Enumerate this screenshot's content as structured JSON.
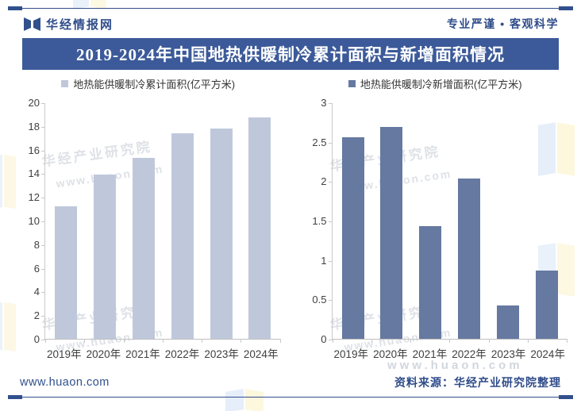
{
  "header": {
    "brand": "华经情报网",
    "tagline": "专业严谨 • 客观科学"
  },
  "title": "2019-2024年中国地热供暖制冷累计面积与新增面积情况",
  "chart_data": [
    {
      "type": "bar",
      "legend": "地热能供暖制冷累计面积(亿平方米)",
      "categories": [
        "2019年",
        "2020年",
        "2021年",
        "2022年",
        "2023年",
        "2024年"
      ],
      "values": [
        11.2,
        13.9,
        15.3,
        17.4,
        17.8,
        18.7
      ],
      "ylim": [
        0,
        20
      ],
      "yticks": [
        0,
        2,
        4,
        6,
        8,
        10,
        12,
        14,
        16,
        18,
        20
      ],
      "bar_color": "#BFC8DB",
      "legend_position": "top",
      "grid": false
    },
    {
      "type": "bar",
      "legend": "地热能供暖制冷新增面积(亿平方米)",
      "categories": [
        "2019年",
        "2020年",
        "2021年",
        "2022年",
        "2023年",
        "2024年"
      ],
      "values": [
        2.56,
        2.69,
        1.43,
        2.03,
        0.42,
        0.87
      ],
      "ylim": [
        0,
        3
      ],
      "yticks": [
        0,
        0.5,
        1,
        1.5,
        2,
        2.5,
        3
      ],
      "bar_color": "#6579A1",
      "legend_position": "top",
      "grid": false
    }
  ],
  "footer": {
    "website": "www.huaon.com",
    "source": "资料来源：华经产业研究院整理"
  },
  "watermark": {
    "text": "华经产业研究院",
    "url": "www.huaon.com"
  },
  "colors": {
    "navy": "#31508C",
    "title_bar_bg": "#3C5A99",
    "title_text": "#FFFFFF",
    "cumulative_bar": "#BFC8DB",
    "new_area_bar": "#6579A1"
  }
}
